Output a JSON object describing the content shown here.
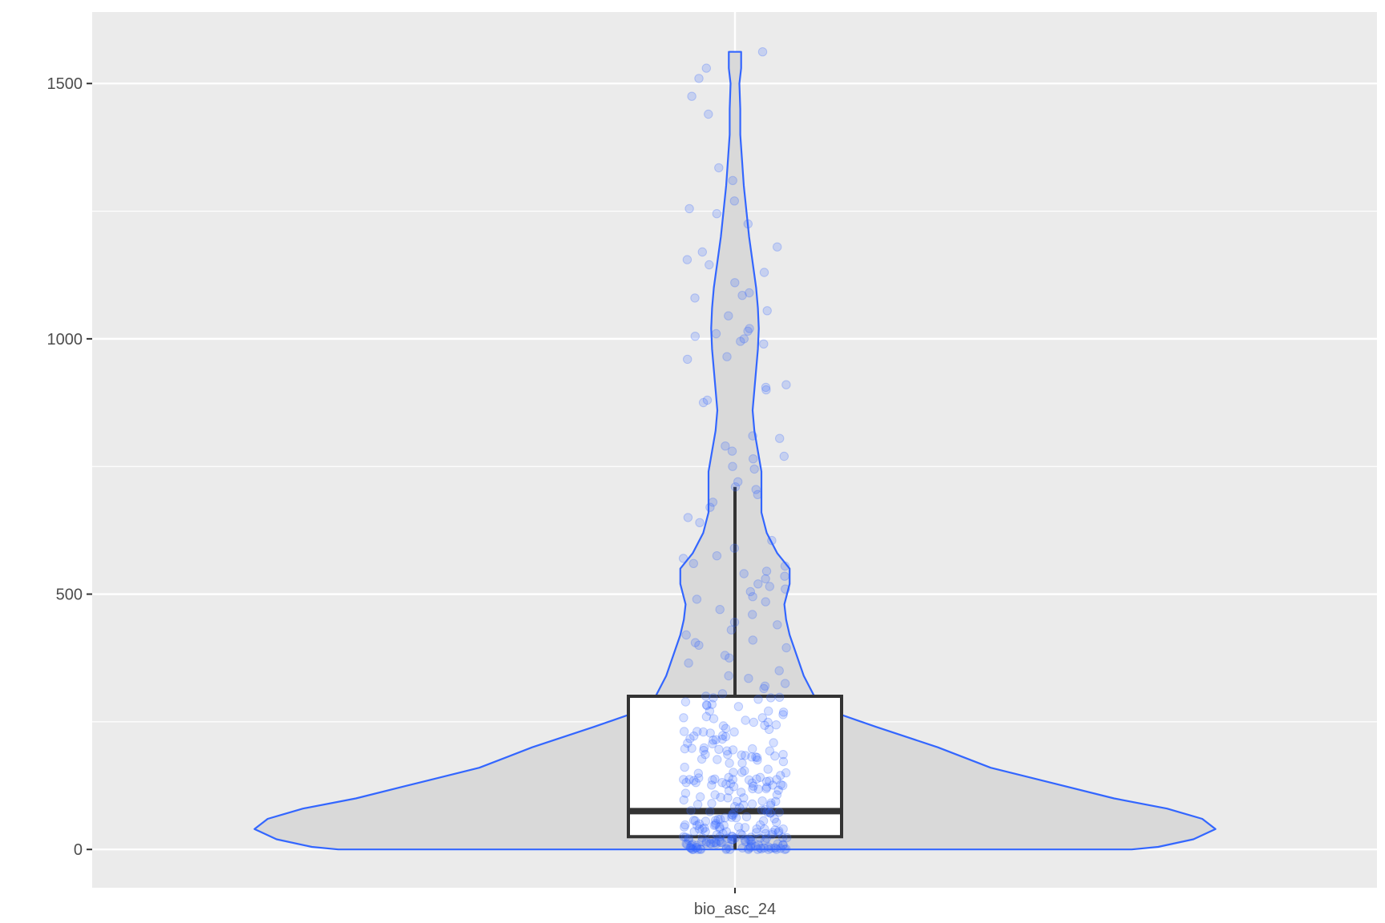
{
  "chart_data": {
    "type": "violin",
    "title": "",
    "xlabel": "",
    "ylabel": "",
    "categories": [
      "bio_asc_24"
    ],
    "ylim": [
      -75,
      1640
    ],
    "yticks": [
      0,
      500,
      1000,
      1500
    ],
    "ytick_labels": [
      "0",
      "500",
      "1000",
      "1500"
    ],
    "grid": true,
    "legend": "none",
    "colors": {
      "panel": "#ebebeb",
      "grid": "#ffffff",
      "violin_fill": "#d9d9d9",
      "violin_line": "#3366ff",
      "points": "#3366ff",
      "box_line": "#333333",
      "box_fill": "#ffffff"
    },
    "violin": {
      "category": "bio_asc_24",
      "y_min": 0,
      "y_max": 1562,
      "density_profile": [
        [
          0,
          450
        ],
        [
          5,
          480
        ],
        [
          20,
          520
        ],
        [
          40,
          545
        ],
        [
          60,
          530
        ],
        [
          80,
          490
        ],
        [
          100,
          430
        ],
        [
          130,
          360
        ],
        [
          160,
          290
        ],
        [
          200,
          230
        ],
        [
          240,
          160
        ],
        [
          270,
          110
        ],
        [
          300,
          90
        ],
        [
          340,
          78
        ],
        [
          380,
          70
        ],
        [
          420,
          62
        ],
        [
          450,
          58
        ],
        [
          480,
          56
        ],
        [
          520,
          62
        ],
        [
          550,
          62
        ],
        [
          580,
          48
        ],
        [
          620,
          36
        ],
        [
          660,
          30
        ],
        [
          700,
          30
        ],
        [
          740,
          30
        ],
        [
          780,
          26
        ],
        [
          820,
          22
        ],
        [
          860,
          20
        ],
        [
          900,
          22
        ],
        [
          940,
          24
        ],
        [
          980,
          26
        ],
        [
          1020,
          27
        ],
        [
          1060,
          26
        ],
        [
          1100,
          24
        ],
        [
          1150,
          20
        ],
        [
          1200,
          16
        ],
        [
          1250,
          13
        ],
        [
          1300,
          10
        ],
        [
          1350,
          8
        ],
        [
          1400,
          6
        ],
        [
          1450,
          6
        ],
        [
          1500,
          5
        ],
        [
          1530,
          7
        ],
        [
          1562,
          7
        ]
      ]
    },
    "boxplot": {
      "category": "bio_asc_24",
      "whisker_low": 0,
      "q1": 25,
      "median": 75,
      "q3": 300,
      "whisker_high": 710
    },
    "points_high": [
      1562,
      1530,
      1510,
      1475,
      1440,
      1335,
      1310,
      1270,
      1255,
      1245,
      1225,
      1180,
      1170,
      1155,
      1145,
      1130,
      1110,
      1090,
      1085,
      1080,
      1055,
      1045,
      1020,
      1015,
      1010,
      1005,
      1000,
      995,
      990,
      965,
      960,
      910,
      905,
      900,
      880,
      875,
      810,
      805,
      790,
      780,
      770,
      765,
      750,
      745,
      720,
      710,
      705,
      695,
      680,
      670,
      650,
      640,
      605,
      590,
      575,
      570,
      560,
      555,
      545,
      540,
      535,
      530,
      520,
      515,
      510,
      505,
      495,
      490,
      485,
      470,
      460,
      445,
      440,
      430,
      420,
      410,
      405,
      400,
      395,
      380,
      375,
      365,
      350,
      340,
      335,
      325,
      320,
      315,
      305,
      300
    ],
    "points_low_count": 260
  }
}
